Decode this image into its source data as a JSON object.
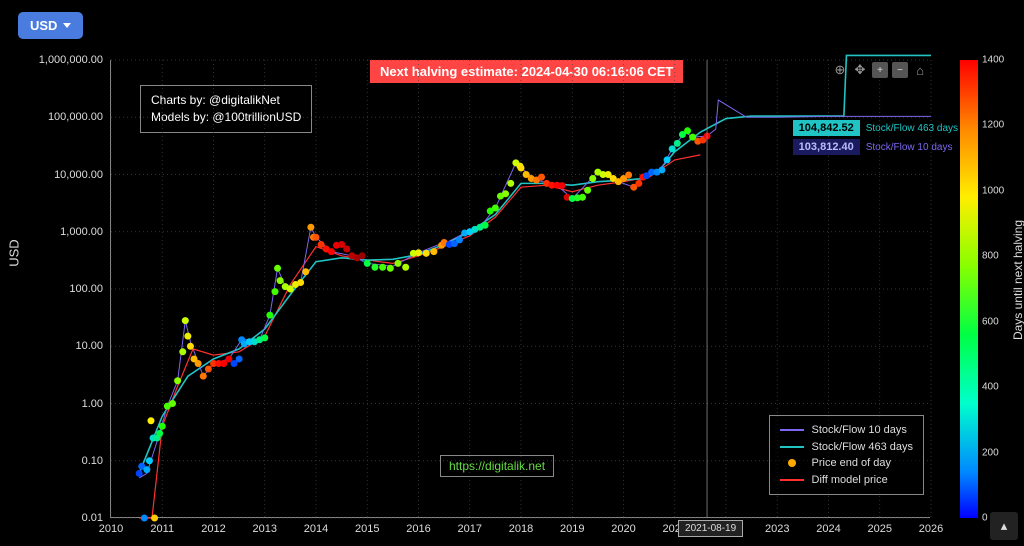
{
  "currency": {
    "label": "USD"
  },
  "halving_banner": "Next halving estimate: 2024-04-30 06:16:06 CET",
  "credits": {
    "line1": "Charts by: @digitalikNet",
    "line2": "Models by: @100trillionUSD"
  },
  "link_badge": "https://digitalik.net",
  "y_axis": {
    "label": "USD",
    "scale": "log",
    "min": 0.01,
    "max": 1000000,
    "ticks": [
      {
        "v": 0.01,
        "label": "0.01"
      },
      {
        "v": 0.1,
        "label": "0.10"
      },
      {
        "v": 1,
        "label": "1.00"
      },
      {
        "v": 10,
        "label": "10.00"
      },
      {
        "v": 100,
        "label": "100.00"
      },
      {
        "v": 1000,
        "label": "1,000.00"
      },
      {
        "v": 10000,
        "label": "10,000.00"
      },
      {
        "v": 100000,
        "label": "100,000.00"
      },
      {
        "v": 1000000,
        "label": "1,000,000.00"
      }
    ]
  },
  "x_axis": {
    "min": 2010,
    "max": 2026,
    "ticks": [
      2010,
      2011,
      2012,
      2013,
      2014,
      2015,
      2016,
      2017,
      2018,
      2019,
      2020,
      2021,
      2022,
      2023,
      2024,
      2025,
      2026
    ],
    "cursor_label": "2021-08-19",
    "cursor_x": 2021.63
  },
  "chart": {
    "background": "#000000",
    "grid_color": "#444444",
    "axis_color": "#888888",
    "tick_color": "#dddddd",
    "font_size_ticks": 11,
    "series_sf10": {
      "color": "#7b68ee",
      "width": 1.0,
      "points": [
        [
          2010.55,
          0.05
        ],
        [
          2010.7,
          0.06
        ],
        [
          2010.9,
          0.22
        ],
        [
          2011.1,
          0.9
        ],
        [
          2011.3,
          2.5
        ],
        [
          2011.45,
          28
        ],
        [
          2011.55,
          12
        ],
        [
          2011.8,
          3
        ],
        [
          2012.0,
          5
        ],
        [
          2012.3,
          6
        ],
        [
          2012.55,
          13
        ],
        [
          2012.9,
          13
        ],
        [
          2013.1,
          35
        ],
        [
          2013.25,
          230
        ],
        [
          2013.4,
          110
        ],
        [
          2013.7,
          130
        ],
        [
          2013.9,
          1200
        ],
        [
          2014.0,
          800
        ],
        [
          2014.3,
          450
        ],
        [
          2014.7,
          380
        ],
        [
          2015.0,
          280
        ],
        [
          2015.5,
          250
        ],
        [
          2016.0,
          430
        ],
        [
          2016.5,
          650
        ],
        [
          2016.55,
          650
        ],
        [
          2016.9,
          950
        ],
        [
          2017.2,
          1200
        ],
        [
          2017.5,
          2600
        ],
        [
          2017.9,
          16000
        ],
        [
          2018.0,
          13000
        ],
        [
          2018.3,
          8000
        ],
        [
          2018.7,
          6500
        ],
        [
          2019.0,
          3800
        ],
        [
          2019.5,
          11000
        ],
        [
          2019.9,
          7500
        ],
        [
          2020.2,
          6000
        ],
        [
          2020.38,
          9000
        ],
        [
          2020.7,
          11000
        ],
        [
          2020.95,
          28000
        ],
        [
          2021.2,
          55000
        ],
        [
          2021.35,
          45000
        ],
        [
          2021.63,
          47000
        ],
        [
          2021.8,
          62000
        ],
        [
          2021.85,
          200000
        ],
        [
          2022.4,
          100000
        ],
        [
          2023.0,
          100000
        ],
        [
          2024.0,
          103812
        ],
        [
          2025.0,
          103812
        ],
        [
          2026.0,
          103812
        ]
      ]
    },
    "series_sf463": {
      "color": "#20c4c4",
      "width": 1.6,
      "points": [
        [
          2010.55,
          0.06
        ],
        [
          2011.0,
          0.6
        ],
        [
          2011.5,
          3
        ],
        [
          2012.0,
          6
        ],
        [
          2012.5,
          9
        ],
        [
          2013.0,
          20
        ],
        [
          2013.5,
          80
        ],
        [
          2014.0,
          300
        ],
        [
          2014.5,
          350
        ],
        [
          2015.0,
          320
        ],
        [
          2015.5,
          330
        ],
        [
          2016.0,
          400
        ],
        [
          2016.5,
          600
        ],
        [
          2017.0,
          1000
        ],
        [
          2017.5,
          2000
        ],
        [
          2018.0,
          7000
        ],
        [
          2018.5,
          7000
        ],
        [
          2019.0,
          6500
        ],
        [
          2019.5,
          7500
        ],
        [
          2020.0,
          8000
        ],
        [
          2020.4,
          8500
        ],
        [
          2020.7,
          12000
        ],
        [
          2021.0,
          25000
        ],
        [
          2021.5,
          55000
        ],
        [
          2022.0,
          95000
        ],
        [
          2022.5,
          104842
        ],
        [
          2024.0,
          104842
        ],
        [
          2024.3,
          104842
        ],
        [
          2024.35,
          1200000
        ],
        [
          2026.0,
          1200000
        ]
      ]
    },
    "series_diff": {
      "color": "#ff3030",
      "width": 1.2,
      "points": [
        [
          2010.55,
          0.01
        ],
        [
          2010.8,
          0.01
        ],
        [
          2011.0,
          0.4
        ],
        [
          2011.3,
          2
        ],
        [
          2011.6,
          9
        ],
        [
          2012.0,
          7
        ],
        [
          2012.5,
          8
        ],
        [
          2013.0,
          15
        ],
        [
          2013.5,
          120
        ],
        [
          2014.0,
          550
        ],
        [
          2014.5,
          380
        ],
        [
          2015.0,
          320
        ],
        [
          2015.5,
          280
        ],
        [
          2016.0,
          380
        ],
        [
          2016.5,
          550
        ],
        [
          2017.0,
          850
        ],
        [
          2017.5,
          1800
        ],
        [
          2018.0,
          6000
        ],
        [
          2018.5,
          6500
        ],
        [
          2019.0,
          5000
        ],
        [
          2019.5,
          6500
        ],
        [
          2020.0,
          7500
        ],
        [
          2020.5,
          9000
        ],
        [
          2021.0,
          18000
        ],
        [
          2021.5,
          22000
        ]
      ]
    },
    "series_price_dots": {
      "marker": "circle",
      "size": 3.5,
      "points": [
        [
          2010.55,
          0.06,
          "#0044ff"
        ],
        [
          2010.6,
          0.08,
          "#0066ff"
        ],
        [
          2010.65,
          0.01,
          "#0088ff"
        ],
        [
          2010.7,
          0.07,
          "#00aaff"
        ],
        [
          2010.75,
          0.1,
          "#00ccff"
        ],
        [
          2010.78,
          0.5,
          "#ffee00"
        ],
        [
          2010.82,
          0.25,
          "#00ddcc"
        ],
        [
          2010.85,
          0.01,
          "#ffcc00"
        ],
        [
          2010.9,
          0.25,
          "#00ee88"
        ],
        [
          2010.95,
          0.3,
          "#00ff44"
        ],
        [
          2011.0,
          0.4,
          "#22ff00"
        ],
        [
          2011.1,
          0.9,
          "#44ff00"
        ],
        [
          2011.2,
          1.0,
          "#66ff00"
        ],
        [
          2011.3,
          2.5,
          "#88ff00"
        ],
        [
          2011.4,
          8,
          "#aaff00"
        ],
        [
          2011.45,
          28,
          "#ccff00"
        ],
        [
          2011.5,
          15,
          "#eeee00"
        ],
        [
          2011.55,
          10,
          "#ffdd00"
        ],
        [
          2011.62,
          6,
          "#ffbb00"
        ],
        [
          2011.7,
          5,
          "#ff9900"
        ],
        [
          2011.8,
          3,
          "#ff7700"
        ],
        [
          2011.9,
          4,
          "#ff5500"
        ],
        [
          2012.0,
          5,
          "#ff3300"
        ],
        [
          2012.1,
          5,
          "#ff1100"
        ],
        [
          2012.2,
          5,
          "#ff0000"
        ],
        [
          2012.3,
          6,
          "#ee0000"
        ],
        [
          2012.4,
          5,
          "#0044ff"
        ],
        [
          2012.5,
          6,
          "#0066ff"
        ],
        [
          2012.55,
          13,
          "#0088ff"
        ],
        [
          2012.6,
          11,
          "#00aaff"
        ],
        [
          2012.7,
          12,
          "#00ccff"
        ],
        [
          2012.8,
          12,
          "#00ddcc"
        ],
        [
          2012.9,
          13,
          "#00ee88"
        ],
        [
          2013.0,
          14,
          "#00ff44"
        ],
        [
          2013.1,
          35,
          "#22ff00"
        ],
        [
          2013.2,
          90,
          "#44ff00"
        ],
        [
          2013.25,
          230,
          "#66ff00"
        ],
        [
          2013.3,
          140,
          "#88ff00"
        ],
        [
          2013.4,
          110,
          "#aaff00"
        ],
        [
          2013.5,
          100,
          "#ccff00"
        ],
        [
          2013.6,
          120,
          "#eeee00"
        ],
        [
          2013.7,
          130,
          "#ffdd00"
        ],
        [
          2013.8,
          200,
          "#ffbb00"
        ],
        [
          2013.9,
          1200,
          "#ff9900"
        ],
        [
          2013.95,
          800,
          "#ff7700"
        ],
        [
          2014.0,
          800,
          "#ff5500"
        ],
        [
          2014.1,
          600,
          "#ff3300"
        ],
        [
          2014.2,
          500,
          "#ff1100"
        ],
        [
          2014.3,
          450,
          "#ff0000"
        ],
        [
          2014.4,
          580,
          "#ee0000"
        ],
        [
          2014.5,
          600,
          "#dd0000"
        ],
        [
          2014.6,
          500,
          "#cc0000"
        ],
        [
          2014.7,
          380,
          "#bb0000"
        ],
        [
          2014.8,
          350,
          "#aa0000"
        ],
        [
          2014.9,
          380,
          "#990000"
        ],
        [
          2015.0,
          280,
          "#00ff44"
        ],
        [
          2015.15,
          240,
          "#22ff22"
        ],
        [
          2015.3,
          240,
          "#44ff00"
        ],
        [
          2015.45,
          230,
          "#66ff00"
        ],
        [
          2015.6,
          280,
          "#88ff00"
        ],
        [
          2015.75,
          240,
          "#aaff00"
        ],
        [
          2015.9,
          420,
          "#ccff00"
        ],
        [
          2016.0,
          430,
          "#eeee00"
        ],
        [
          2016.15,
          420,
          "#ffdd00"
        ],
        [
          2016.3,
          450,
          "#ffbb00"
        ],
        [
          2016.45,
          580,
          "#ff9900"
        ],
        [
          2016.5,
          650,
          "#ff7700"
        ],
        [
          2016.6,
          600,
          "#0044ff"
        ],
        [
          2016.7,
          620,
          "#0066ff"
        ],
        [
          2016.8,
          720,
          "#0088ff"
        ],
        [
          2016.9,
          950,
          "#00aaff"
        ],
        [
          2017.0,
          1000,
          "#00ccff"
        ],
        [
          2017.1,
          1100,
          "#00ddcc"
        ],
        [
          2017.2,
          1200,
          "#00ee88"
        ],
        [
          2017.3,
          1300,
          "#00ff44"
        ],
        [
          2017.4,
          2300,
          "#22ff00"
        ],
        [
          2017.5,
          2600,
          "#44ff00"
        ],
        [
          2017.6,
          4200,
          "#66ff00"
        ],
        [
          2017.7,
          4600,
          "#88ff00"
        ],
        [
          2017.8,
          7000,
          "#aaff00"
        ],
        [
          2017.9,
          16000,
          "#ccff00"
        ],
        [
          2017.98,
          14000,
          "#eeee00"
        ],
        [
          2018.0,
          13000,
          "#ffdd00"
        ],
        [
          2018.1,
          10000,
          "#ffbb00"
        ],
        [
          2018.2,
          8500,
          "#ff9900"
        ],
        [
          2018.3,
          8000,
          "#ff7700"
        ],
        [
          2018.4,
          9000,
          "#ff5500"
        ],
        [
          2018.5,
          7000,
          "#ff3300"
        ],
        [
          2018.6,
          6500,
          "#ff1100"
        ],
        [
          2018.7,
          6500,
          "#ff0000"
        ],
        [
          2018.8,
          6400,
          "#ee0000"
        ],
        [
          2018.9,
          4000,
          "#dd0000"
        ],
        [
          2019.0,
          3800,
          "#00ff44"
        ],
        [
          2019.1,
          3900,
          "#22ff22"
        ],
        [
          2019.2,
          4000,
          "#44ff00"
        ],
        [
          2019.3,
          5300,
          "#66ff00"
        ],
        [
          2019.4,
          8500,
          "#88ff00"
        ],
        [
          2019.5,
          11000,
          "#aaff00"
        ],
        [
          2019.6,
          10000,
          "#ccff00"
        ],
        [
          2019.7,
          10000,
          "#eeee00"
        ],
        [
          2019.8,
          8500,
          "#ffdd00"
        ],
        [
          2019.9,
          7500,
          "#ffbb00"
        ],
        [
          2020.0,
          8500,
          "#ff9900"
        ],
        [
          2020.1,
          9800,
          "#ff7700"
        ],
        [
          2020.2,
          6000,
          "#ff5500"
        ],
        [
          2020.3,
          7000,
          "#ff3300"
        ],
        [
          2020.38,
          9000,
          "#ff1100"
        ],
        [
          2020.45,
          9500,
          "#0044ff"
        ],
        [
          2020.55,
          11000,
          "#0066ff"
        ],
        [
          2020.65,
          11000,
          "#0088ff"
        ],
        [
          2020.75,
          12000,
          "#00aaff"
        ],
        [
          2020.85,
          18000,
          "#00ccff"
        ],
        [
          2020.95,
          28000,
          "#00ddcc"
        ],
        [
          2021.05,
          35000,
          "#00ee88"
        ],
        [
          2021.15,
          50000,
          "#00ff44"
        ],
        [
          2021.25,
          58000,
          "#22ff00"
        ],
        [
          2021.35,
          45000,
          "#44ff00"
        ],
        [
          2021.45,
          38000,
          "#ff5500"
        ],
        [
          2021.55,
          40000,
          "#ff3300"
        ],
        [
          2021.63,
          47000,
          "#ff0000"
        ]
      ]
    },
    "tooltips": [
      {
        "value": "104,842.52",
        "label": "Stock/Flow 463 days",
        "chip_bg": "#20c4c4",
        "chip_fg": "#000000",
        "text_color": "#20c4c4"
      },
      {
        "value": "103,812.40",
        "label": "Stock/Flow 10 days",
        "chip_bg": "#1a1a5e",
        "chip_fg": "#bbbbff",
        "text_color": "#7b68ee"
      }
    ]
  },
  "legend": {
    "items": [
      {
        "type": "line",
        "color": "#7b68ee",
        "label": "Stock/Flow 10 days"
      },
      {
        "type": "line",
        "color": "#20c4c4",
        "label": "Stock/Flow 463 days"
      },
      {
        "type": "dot",
        "color": "#ffaa00",
        "label": "Price end of day"
      },
      {
        "type": "line",
        "color": "#ff3030",
        "label": "Diff model price"
      }
    ]
  },
  "colorbar": {
    "label": "Days until next halving",
    "min": 0,
    "max": 1400,
    "ticks": [
      0,
      200,
      400,
      600,
      800,
      1000,
      1200,
      1400
    ]
  },
  "toolbar": {
    "plus": "+",
    "minus": "−"
  }
}
